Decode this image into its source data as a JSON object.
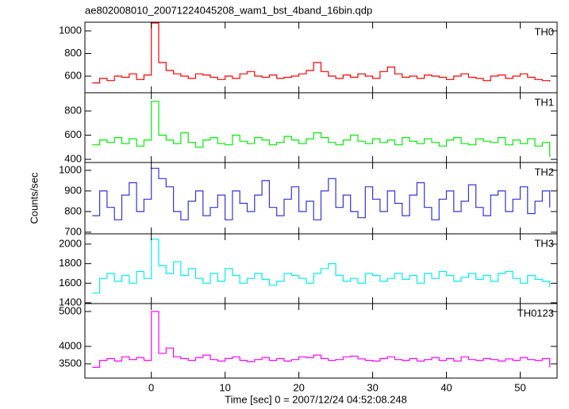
{
  "chart_data": [
    {
      "type": "line",
      "title": "ae802008010_20071224045208_wam1_bst_4band_16bin.qdp",
      "x": [
        -8,
        -7,
        -6,
        -5,
        -4,
        -3,
        -2,
        -1,
        0,
        1,
        2,
        3,
        4,
        5,
        6,
        7,
        8,
        9,
        10,
        11,
        12,
        13,
        14,
        15,
        16,
        17,
        18,
        19,
        20,
        21,
        22,
        23,
        24,
        25,
        26,
        27,
        28,
        29,
        30,
        31,
        32,
        33,
        34,
        35,
        36,
        37,
        38,
        39,
        40,
        41,
        42,
        43,
        44,
        45,
        46,
        47,
        48,
        49,
        50,
        51,
        52,
        53,
        54
      ],
      "series": [
        {
          "name": "TH0",
          "color": "#ff0000",
          "values": [
            540,
            580,
            560,
            600,
            590,
            620,
            570,
            610,
            1070,
            720,
            650,
            620,
            600,
            580,
            620,
            610,
            590,
            570,
            600,
            580,
            620,
            640,
            600,
            590,
            610,
            580,
            590,
            600,
            620,
            650,
            720,
            640,
            600,
            580,
            610,
            590,
            620,
            600,
            580,
            640,
            680,
            620,
            590,
            600,
            580,
            610,
            600,
            590,
            570,
            600,
            620,
            590,
            580,
            560,
            600,
            610,
            580,
            600,
            620,
            590,
            570,
            560,
            550
          ]
        }
      ],
      "xlim": [
        -9,
        55
      ],
      "xticks": [
        0,
        10,
        20,
        30,
        40,
        50
      ],
      "ylim": [
        453,
        1077
      ],
      "yticks": [
        600,
        800,
        1000
      ]
    },
    {
      "type": "line",
      "x": [
        -8,
        -7,
        -6,
        -5,
        -4,
        -3,
        -2,
        -1,
        0,
        1,
        2,
        3,
        4,
        5,
        6,
        7,
        8,
        9,
        10,
        11,
        12,
        13,
        14,
        15,
        16,
        17,
        18,
        19,
        20,
        21,
        22,
        23,
        24,
        25,
        26,
        27,
        28,
        29,
        30,
        31,
        32,
        33,
        34,
        35,
        36,
        37,
        38,
        39,
        40,
        41,
        42,
        43,
        44,
        45,
        46,
        47,
        48,
        49,
        50,
        51,
        52,
        53,
        54
      ],
      "series": [
        {
          "name": "TH1",
          "color": "#00ee00",
          "values": [
            520,
            560,
            540,
            580,
            530,
            570,
            510,
            560,
            880,
            600,
            560,
            530,
            620,
            540,
            500,
            560,
            580,
            530,
            520,
            600,
            550,
            530,
            580,
            560,
            520,
            540,
            590,
            560,
            530,
            570,
            620,
            580,
            540,
            520,
            560,
            600,
            550,
            530,
            570,
            540,
            560,
            520,
            580,
            550,
            530,
            570,
            540,
            510,
            560,
            580,
            530,
            520,
            570,
            550,
            540,
            580,
            520,
            560,
            530,
            570,
            510,
            540,
            420
          ]
        }
      ],
      "xlim": [
        -9,
        55
      ],
      "xticks": [
        0,
        10,
        20,
        30,
        40,
        50
      ],
      "ylim": [
        374,
        951
      ],
      "yticks": [
        400,
        600,
        800
      ]
    },
    {
      "type": "line",
      "ylabel": "Counts/sec",
      "x": [
        -8,
        -7,
        -6,
        -5,
        -4,
        -3,
        -2,
        -1,
        0,
        1,
        2,
        3,
        4,
        5,
        6,
        7,
        8,
        9,
        10,
        11,
        12,
        13,
        14,
        15,
        16,
        17,
        18,
        19,
        20,
        21,
        22,
        23,
        24,
        25,
        26,
        27,
        28,
        29,
        30,
        31,
        32,
        33,
        34,
        35,
        36,
        37,
        38,
        39,
        40,
        41,
        42,
        43,
        44,
        45,
        46,
        47,
        48,
        49,
        50,
        51,
        52,
        53,
        54
      ],
      "series": [
        {
          "name": "TH2",
          "color": "#3333dd",
          "values": [
            780,
            900,
            820,
            760,
            880,
            940,
            800,
            860,
            1010,
            960,
            920,
            800,
            760,
            850,
            900,
            780,
            820,
            880,
            760,
            900,
            840,
            800,
            880,
            950,
            820,
            780,
            860,
            920,
            800,
            850,
            760,
            900,
            960,
            820,
            880,
            800,
            770,
            920,
            860,
            800,
            900,
            840,
            780,
            880,
            940,
            820,
            760,
            860,
            900,
            800,
            850,
            930,
            820,
            780,
            880,
            900,
            800,
            860,
            920,
            790,
            850,
            900,
            820
          ]
        }
      ],
      "xlim": [
        -9,
        55
      ],
      "xticks": [
        0,
        10,
        20,
        30,
        40,
        50
      ],
      "ylim": [
        692,
        1038
      ],
      "yticks": [
        700,
        800,
        900,
        1000
      ]
    },
    {
      "type": "line",
      "x": [
        -8,
        -7,
        -6,
        -5,
        -4,
        -3,
        -2,
        -1,
        0,
        1,
        2,
        3,
        4,
        5,
        6,
        7,
        8,
        9,
        10,
        11,
        12,
        13,
        14,
        15,
        16,
        17,
        18,
        19,
        20,
        21,
        22,
        23,
        24,
        25,
        26,
        27,
        28,
        29,
        30,
        31,
        32,
        33,
        34,
        35,
        36,
        37,
        38,
        39,
        40,
        41,
        42,
        43,
        44,
        45,
        46,
        47,
        48,
        49,
        50,
        51,
        52,
        53,
        54
      ],
      "series": [
        {
          "name": "TH3",
          "color": "#00eeee",
          "values": [
            1500,
            1650,
            1700,
            1620,
            1680,
            1600,
            1720,
            1650,
            2050,
            1780,
            1700,
            1820,
            1680,
            1750,
            1650,
            1600,
            1700,
            1620,
            1750,
            1680,
            1600,
            1650,
            1700,
            1640,
            1580,
            1620,
            1700,
            1680,
            1650,
            1600,
            1700,
            1750,
            1800,
            1680,
            1620,
            1650,
            1600,
            1700,
            1680,
            1620,
            1650,
            1700,
            1640,
            1680,
            1600,
            1700,
            1650,
            1720,
            1680,
            1620,
            1660,
            1700,
            1640,
            1680,
            1620,
            1700,
            1720,
            1650,
            1600,
            1680,
            1640,
            1620,
            1560
          ]
        }
      ],
      "xlim": [
        -9,
        55
      ],
      "xticks": [
        0,
        10,
        20,
        30,
        40,
        50
      ],
      "ylim": [
        1392,
        2105
      ],
      "yticks": [
        1400,
        1600,
        1800,
        2000
      ]
    },
    {
      "type": "line",
      "xlabel": "Time [sec] 0 = 2007/12/24 04:52:08.248",
      "x": [
        -8,
        -7,
        -6,
        -5,
        -4,
        -3,
        -2,
        -1,
        0,
        1,
        2,
        3,
        4,
        5,
        6,
        7,
        8,
        9,
        10,
        11,
        12,
        13,
        14,
        15,
        16,
        17,
        18,
        19,
        20,
        21,
        22,
        23,
        24,
        25,
        26,
        27,
        28,
        29,
        30,
        31,
        32,
        33,
        34,
        35,
        36,
        37,
        38,
        39,
        40,
        41,
        42,
        43,
        44,
        45,
        46,
        47,
        48,
        49,
        50,
        51,
        52,
        53,
        54
      ],
      "series": [
        {
          "name": "TH0123",
          "color": "#ff00ff",
          "values": [
            3400,
            3600,
            3650,
            3580,
            3700,
            3620,
            3680,
            3600,
            5000,
            3800,
            3950,
            3700,
            3650,
            3600,
            3680,
            3750,
            3620,
            3580,
            3650,
            3700,
            3600,
            3560,
            3620,
            3680,
            3600,
            3650,
            3580,
            3620,
            3700,
            3680,
            3750,
            3650,
            3600,
            3620,
            3700,
            3720,
            3640,
            3600,
            3580,
            3650,
            3700,
            3620,
            3600,
            3650,
            3580,
            3620,
            3680,
            3600,
            3650,
            3580,
            3700,
            3620,
            3600,
            3650,
            3620,
            3580,
            3640,
            3600,
            3680,
            3620,
            3600,
            3650,
            3400
          ]
        }
      ],
      "xlim": [
        -9,
        55
      ],
      "xticks": [
        0,
        10,
        20,
        30,
        40,
        50
      ],
      "ylim": [
        3091,
        5227
      ],
      "yticks": [
        3500,
        4000,
        5000
      ]
    }
  ]
}
